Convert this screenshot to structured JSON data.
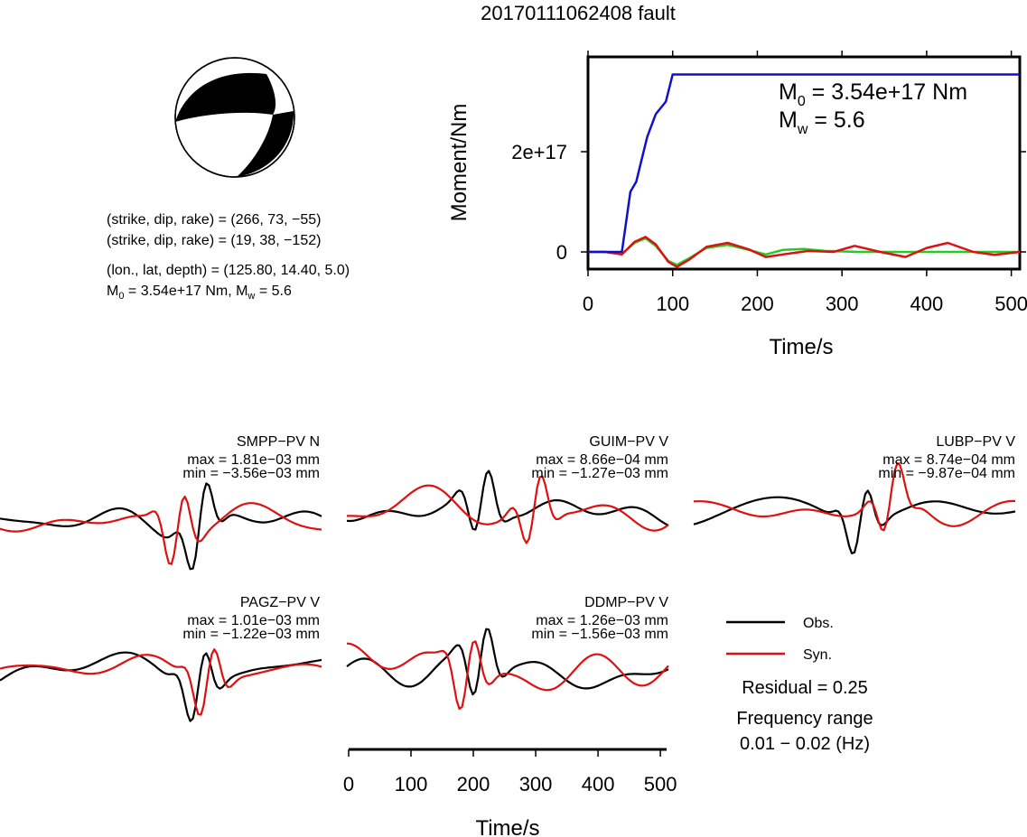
{
  "title": "20170111062408 fault",
  "mechanism": {
    "plane1": "(strike, dip, rake) = (266, 73, −55)",
    "plane2": "(strike, dip, rake) = (19, 38, −152)",
    "location": "(lon., lat, depth) = (125.80, 14.40, 5.0)",
    "moment_prefix": "M",
    "moment_sub": "0",
    "moment_rest": " = 3.54e+17 Nm, M",
    "mw_sub": "w",
    "mw_rest": " = 5.6"
  },
  "moment_annotation": {
    "m0_prefix": "M",
    "m0_sub": "0",
    "m0_rest": " = 3.54e+17 Nm",
    "mw_prefix": "M",
    "mw_sub": "w",
    "mw_rest": " = 5.6"
  },
  "legend": {
    "obs": "Obs.",
    "syn": "Syn.",
    "residual": "Residual = 0.25",
    "freq_line1": "Frequency range",
    "freq_line2": "0.01 − 0.02 (Hz)"
  },
  "colors": {
    "cumulative": "#1010cc",
    "rate_red": "#dd1111",
    "rate_green": "#22cc22",
    "observed": "#000000",
    "synthetic": "#dd1111",
    "beachball_fill": "#000000"
  },
  "chart_data": [
    {
      "type": "line",
      "name": "moment-function",
      "xlabel": "Time/s",
      "ylabel": "Moment/Nm",
      "xlim": [
        0,
        510
      ],
      "ylim": [
        -4e+16,
        4e+17
      ],
      "xticks": [
        "0",
        "100",
        "200",
        "300",
        "400",
        "500"
      ],
      "yticks": [
        "0",
        "2e+17"
      ],
      "series": [
        {
          "color": "blue",
          "x": [
            0,
            40,
            50,
            57,
            62,
            70,
            80,
            92,
            100,
            510
          ],
          "y": [
            0,
            0,
            1.2e+17,
            1.4e+17,
            1.75e+17,
            2.3e+17,
            2.75e+17,
            3e+17,
            3.54e+17,
            3.54e+17
          ]
        },
        {
          "color": "red",
          "x": [
            0,
            20,
            40,
            55,
            68,
            80,
            95,
            105,
            120,
            140,
            165,
            190,
            210,
            230,
            260,
            290,
            315,
            345,
            375,
            400,
            425,
            455,
            480,
            510
          ],
          "y": [
            0,
            0,
            -5000000000000000.0,
            2e+16,
            3e+16,
            1.5e+16,
            -2e+16,
            -3e+16,
            -1.5e+16,
            1e+16,
            1.8e+16,
            5000000000000000.0,
            -1e+16,
            -5000000000000000.0,
            2000000000000000.0,
            0,
            1.2e+16,
            0,
            -1e+16,
            8000000000000000.0,
            1.8e+16,
            0,
            -6000000000000000.0,
            0
          ]
        },
        {
          "color": "green",
          "x": [
            0,
            20,
            40,
            55,
            68,
            80,
            95,
            105,
            120,
            140,
            165,
            190,
            210,
            230,
            255,
            280,
            320,
            400,
            510
          ],
          "y": [
            0,
            0,
            -4000000000000000.0,
            1.8e+16,
            2.7e+16,
            1.2e+16,
            -1.8e+16,
            -2.6e+16,
            -1.2e+16,
            8000000000000000.0,
            1.4e+16,
            4000000000000000.0,
            -5000000000000000.0,
            4000000000000000.0,
            6000000000000000.0,
            2000000000000000.0,
            0,
            0,
            0
          ]
        }
      ]
    },
    {
      "type": "line",
      "name": "waveform-fits",
      "xlabel": "Time/s",
      "xlim": [
        0,
        510
      ],
      "xticks": [
        "0",
        "100",
        "200",
        "300",
        "400",
        "500"
      ],
      "stations": [
        {
          "label": "SMPP−PV N",
          "max": "max = 1.81e−03 mm",
          "min": "min = −3.56e−03 mm"
        },
        {
          "label": "GUIM−PV V",
          "max": "max = 8.66e−04 mm",
          "min": "min = −1.27e−03 mm"
        },
        {
          "label": "LUBP−PV V",
          "max": "max = 8.74e−04 mm",
          "min": "min = −9.87e−04 mm"
        },
        {
          "label": "PAGZ−PV V",
          "max": "max = 1.01e−03 mm",
          "min": "min = −1.22e−03 mm"
        },
        {
          "label": "DDMP−PV V",
          "max": "max = 1.26e−03 mm",
          "min": "min = −1.56e−03 mm"
        }
      ]
    }
  ]
}
